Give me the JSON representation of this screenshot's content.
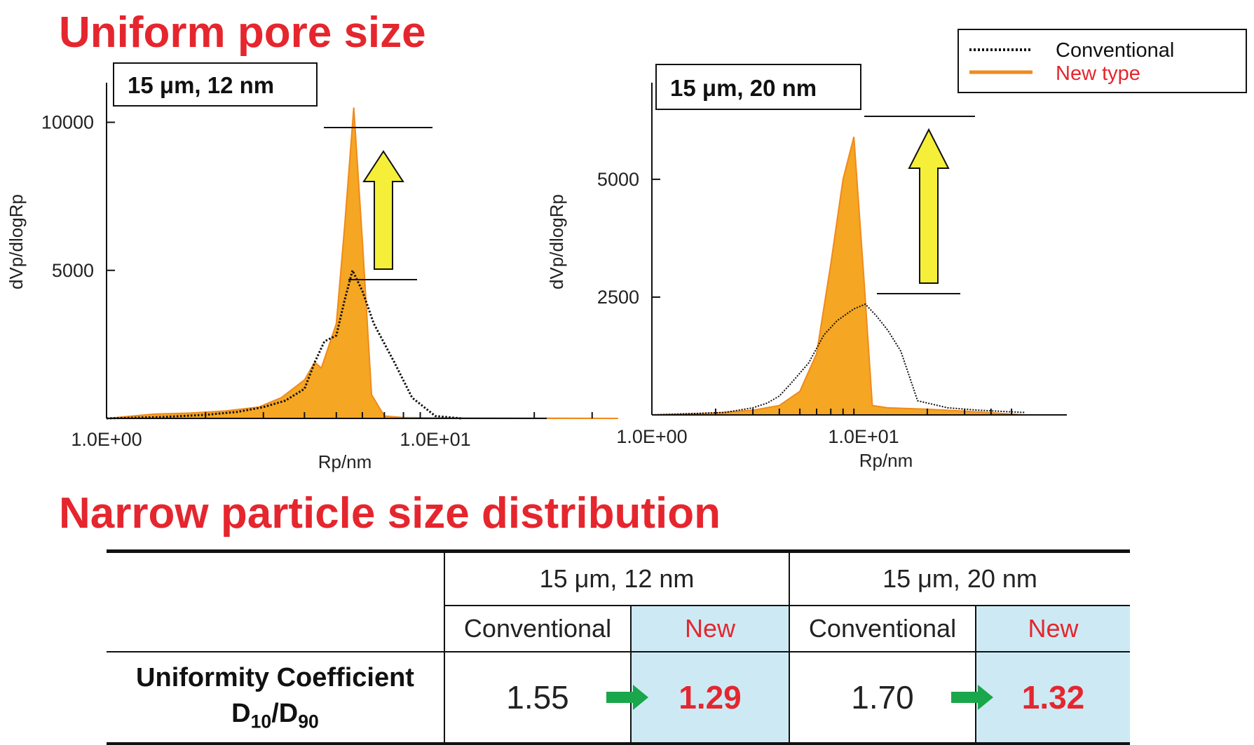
{
  "headings": {
    "pore": "Uniform pore size",
    "particle": "Narrow particle size distribution"
  },
  "legend": {
    "conventional": "Conventional",
    "new_type": "New type"
  },
  "colors": {
    "heading": "#e5262e",
    "new_fill": "#f5a623",
    "new_stroke": "#f08a1c",
    "conventional": "#111111",
    "arrow_fill": "#f5ef3a",
    "highlight_cell": "#cdeaf4",
    "green_arrow": "#1aa64a"
  },
  "chart_data": [
    {
      "type": "area",
      "title": "15 μm, 12 nm",
      "xlabel": "Rp/nm",
      "ylabel": "dVp/dlogRp",
      "x_scale": "log",
      "xlim": [
        1,
        36
      ],
      "ylim": [
        0,
        12000
      ],
      "x_ticks": [
        1,
        10
      ],
      "x_tick_labels": [
        "1.0E+00",
        "1.0E+01"
      ],
      "y_ticks": [
        5000,
        10000
      ],
      "y_tick_labels": [
        "5000",
        "10000"
      ],
      "annotation": "arrow up from conventional peak to new type peak",
      "series": [
        {
          "name": "New type",
          "style": "filled",
          "x": [
            1,
            1.4,
            1.8,
            2.3,
            2.9,
            3.4,
            4.0,
            4.3,
            4.5,
            5.0,
            5.3,
            5.65,
            6.0,
            6.4,
            7.0,
            8.0,
            10,
            36
          ],
          "y": [
            0,
            150,
            180,
            250,
            380,
            700,
            1300,
            1900,
            1700,
            3200,
            6500,
            10500,
            6000,
            800,
            80,
            30,
            20,
            0
          ]
        },
        {
          "name": "Conventional",
          "style": "dotted",
          "x": [
            1,
            1.5,
            2.0,
            2.5,
            3.0,
            3.5,
            4.0,
            4.3,
            4.6,
            5.0,
            5.3,
            5.6,
            6.0,
            6.5,
            7.5,
            8.5,
            10,
            12
          ],
          "y": [
            0,
            50,
            120,
            220,
            380,
            600,
            1000,
            1900,
            2600,
            2800,
            4000,
            5000,
            4300,
            3200,
            1900,
            700,
            80,
            0
          ]
        }
      ]
    },
    {
      "type": "area",
      "title": "15 μm, 20 nm",
      "xlabel": "Rp/nm",
      "ylabel": "dVp/dlogRp",
      "x_scale": "log",
      "xlim": [
        1,
        58
      ],
      "ylim": [
        0,
        6500
      ],
      "x_ticks": [
        1,
        10
      ],
      "x_tick_labels": [
        "1.0E+00",
        "1.0E+01"
      ],
      "y_ticks": [
        2500,
        5000
      ],
      "y_tick_labels": [
        "2500",
        "5000"
      ],
      "annotation": "arrow up from conventional peak to new type peak",
      "series": [
        {
          "name": "New type",
          "style": "filled",
          "x": [
            1,
            2,
            3,
            4,
            5,
            6,
            7,
            8,
            9,
            10,
            11,
            13,
            20,
            30,
            58
          ],
          "y": [
            0,
            40,
            100,
            200,
            500,
            1300,
            3200,
            5000,
            5900,
            3000,
            200,
            150,
            120,
            80,
            0
          ]
        },
        {
          "name": "Conventional",
          "style": "dotted",
          "x": [
            1,
            2.2,
            3.0,
            3.5,
            4.0,
            4.5,
            5.5,
            6.5,
            7.5,
            9.0,
            10.2,
            11.5,
            13,
            15,
            18,
            25,
            35,
            58
          ],
          "y": [
            0,
            50,
            150,
            250,
            400,
            650,
            1100,
            1700,
            2000,
            2250,
            2350,
            2100,
            1800,
            1350,
            300,
            150,
            100,
            50
          ]
        }
      ]
    }
  ],
  "table": {
    "groups": [
      "15 μm, 12 nm",
      "15 μm, 20 nm"
    ],
    "sub_conventional": "Conventional",
    "sub_new": "New",
    "row_label_line1": "Uniformity Coefficient",
    "row_label_D": "D",
    "row_label_10": "10",
    "row_label_slash": "/D",
    "row_label_90": "90",
    "values": {
      "g1_conventional": "1.55",
      "g1_new": "1.29",
      "g2_conventional": "1.70",
      "g2_new": "1.32"
    }
  }
}
